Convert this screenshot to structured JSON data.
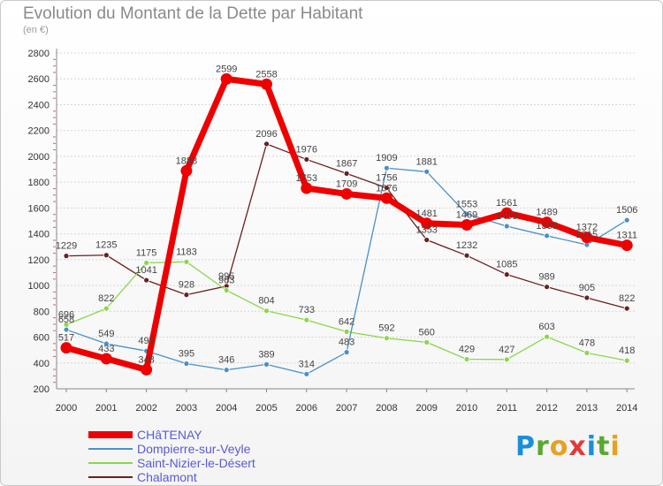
{
  "title": "Evolution du Montant de la Dette par Habitant",
  "subtitle": "(en €)",
  "brand": {
    "text": "Proxiti",
    "letter_colors": [
      "#1a8fd8",
      "#5aa832",
      "#e8a020",
      "#e03a3a",
      "#1a8fd8",
      "#5aa832",
      "#e8a020"
    ]
  },
  "chart_data": {
    "type": "line",
    "x": [
      "2000",
      "2001",
      "2002",
      "2003",
      "2004",
      "2005",
      "2006",
      "2007",
      "2008",
      "2009",
      "2010",
      "2011",
      "2012",
      "2013",
      "2014"
    ],
    "yticks": [
      200,
      400,
      600,
      800,
      1000,
      1200,
      1400,
      1600,
      1800,
      2000,
      2200,
      2400,
      2600,
      2800
    ],
    "ylim": [
      200,
      2800
    ],
    "grid": "horizontal dotted",
    "legend_position": "bottom-left",
    "series": [
      {
        "name": "Chalamont",
        "color": "#6b1f1f",
        "values": [
          1229,
          1235,
          1041,
          928,
          995,
          2096,
          1976,
          1867,
          1756,
          1353,
          1232,
          1085,
          989,
          905,
          822
        ]
      },
      {
        "name": "Saint-Nizier-le-Désert",
        "color": "#8cd64a",
        "values": [
          696,
          822,
          1175,
          1183,
          963,
          804,
          733,
          642,
          592,
          560,
          429,
          427,
          603,
          478,
          418
        ]
      },
      {
        "name": "Dompierre-sur-Veyle",
        "color": "#4a90c8",
        "values": [
          658,
          549,
          493,
          395,
          346,
          389,
          314,
          483,
          1909,
          1881,
          1553,
          1459,
          1385,
          1315,
          1506
        ]
      },
      {
        "name": "CHâTENAY",
        "color": "#ee0000",
        "values": [
          517,
          433,
          348,
          1888,
          2599,
          2558,
          1753,
          1709,
          1676,
          1481,
          1469,
          1561,
          1489,
          1372,
          1311
        ]
      }
    ],
    "legend_order": [
      "CHâTENAY",
      "Dompierre-sur-Veyle",
      "Saint-Nizier-le-Désert",
      "Chalamont"
    ]
  }
}
